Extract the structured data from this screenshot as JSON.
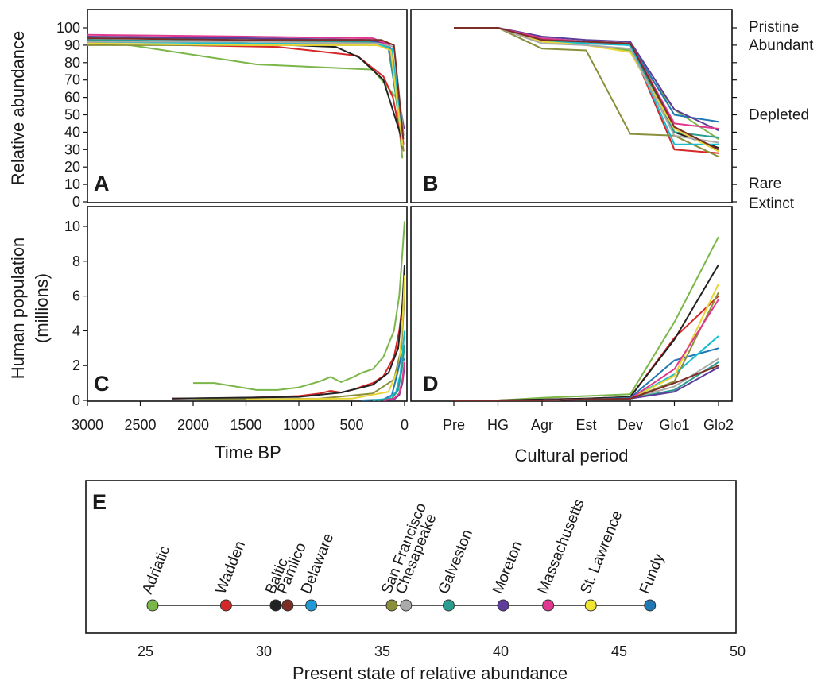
{
  "chart_data": [
    {
      "panel": "A",
      "type": "line",
      "xlabel": "Time BP",
      "ylabel": "Relative abundance",
      "xlim": [
        3000,
        0
      ],
      "ylim": [
        0,
        100
      ],
      "xticks": [
        "3000",
        "2500",
        "2000",
        "1500",
        "1000",
        "500",
        "0"
      ],
      "yticks": [
        "0",
        "10",
        "20",
        "30",
        "40",
        "50",
        "60",
        "70",
        "80",
        "90",
        "100"
      ],
      "series": [
        {
          "color": "#7ab648",
          "x": [
            3000,
            2600,
            1400,
            300,
            80,
            20
          ],
          "y": [
            92,
            90,
            79,
            76,
            60,
            25
          ]
        },
        {
          "color": "#d62728",
          "x": [
            3000,
            1200,
            450,
            200,
            110,
            15
          ],
          "y": [
            91,
            89,
            84,
            72,
            60,
            30
          ]
        },
        {
          "color": "#222222",
          "x": [
            3000,
            1500,
            650,
            430,
            200,
            30
          ],
          "y": [
            93,
            91,
            89,
            83,
            70,
            37
          ]
        },
        {
          "color": "#8a8f3a",
          "x": [
            3000,
            1500,
            250,
            120,
            10
          ],
          "y": [
            90,
            90,
            90,
            88,
            29
          ]
        },
        {
          "color": "#1f77b4",
          "x": [
            3000,
            1500,
            400,
            160,
            25
          ],
          "y": [
            94,
            94,
            93,
            91,
            40
          ]
        },
        {
          "color": "#2a9d8f",
          "x": [
            3000,
            1500,
            350,
            150,
            20
          ],
          "y": [
            93,
            92,
            92,
            89,
            35
          ]
        },
        {
          "color": "#5e3c99",
          "x": [
            3000,
            1500,
            320,
            140,
            5
          ],
          "y": [
            95,
            94,
            93,
            90,
            42
          ]
        },
        {
          "color": "#e0388f",
          "x": [
            3000,
            1500,
            300,
            140,
            10
          ],
          "y": [
            96,
            95,
            94,
            90,
            33
          ]
        },
        {
          "color": "#17becf",
          "x": [
            3000,
            1500,
            280,
            120,
            30
          ],
          "y": [
            92,
            91,
            91,
            88,
            45
          ]
        },
        {
          "color": "#e8d53a",
          "x": [
            3000,
            1500,
            260,
            130,
            18
          ],
          "y": [
            91,
            90,
            90,
            87,
            32
          ]
        },
        {
          "color": "#aaaaaa",
          "x": [
            3000,
            1500,
            240,
            100,
            8
          ],
          "y": [
            92,
            92,
            91,
            89,
            38
          ]
        },
        {
          "color": "#7b2d26",
          "x": [
            3000,
            1500,
            220,
            100,
            12
          ],
          "y": [
            94,
            93,
            93,
            90,
            36
          ]
        }
      ]
    },
    {
      "panel": "B",
      "type": "line",
      "xlabel": "Cultural period",
      "categories": [
        "Pre",
        "HG",
        "Agr",
        "Est",
        "Dev",
        "Glo1",
        "Glo2"
      ],
      "ylim": [
        0,
        100
      ],
      "state_labels": [
        {
          "label": "Pristine",
          "value": 100
        },
        {
          "label": "Abundant",
          "value": 90
        },
        {
          "label": "Depleted",
          "value": 50
        },
        {
          "label": "Rare",
          "value": 10
        },
        {
          "label": "Extinct",
          "value": 0
        }
      ],
      "series": [
        {
          "color": "#7ab648",
          "values": [
            100,
            100,
            92,
            90,
            87,
            53,
            36
          ]
        },
        {
          "color": "#d62728",
          "values": [
            100,
            100,
            93,
            92,
            90,
            30,
            28
          ]
        },
        {
          "color": "#222222",
          "values": [
            100,
            100,
            93,
            92,
            91,
            40,
            31
          ]
        },
        {
          "color": "#8a8f3a",
          "values": [
            100,
            100,
            88,
            87,
            39,
            38,
            26
          ]
        },
        {
          "color": "#1f77b4",
          "values": [
            100,
            100,
            94,
            92,
            91,
            50,
            46
          ]
        },
        {
          "color": "#2a9d8f",
          "values": [
            100,
            100,
            93,
            91,
            90,
            40,
            37
          ]
        },
        {
          "color": "#5e3c99",
          "values": [
            100,
            100,
            95,
            93,
            92,
            53,
            41
          ]
        },
        {
          "color": "#e0388f",
          "values": [
            100,
            100,
            94,
            92,
            91,
            45,
            42
          ]
        },
        {
          "color": "#17becf",
          "values": [
            100,
            100,
            92,
            91,
            90,
            33,
            33
          ]
        },
        {
          "color": "#e8d53a",
          "values": [
            100,
            100,
            92,
            90,
            86,
            42,
            29
          ]
        },
        {
          "color": "#aaaaaa",
          "values": [
            100,
            100,
            91,
            90,
            88,
            38,
            34
          ]
        },
        {
          "color": "#7b2d26",
          "values": [
            100,
            100,
            93,
            92,
            91,
            43,
            30
          ]
        }
      ]
    },
    {
      "panel": "C",
      "type": "line",
      "xlabel": "Time BP",
      "ylabel": "Human population (millions)",
      "xlim": [
        3000,
        0
      ],
      "ylim": [
        0,
        10.8
      ],
      "xticks": [
        "3000",
        "2500",
        "2000",
        "1500",
        "1000",
        "500",
        "0"
      ],
      "yticks": [
        "0",
        "2",
        "4",
        "6",
        "8",
        "10"
      ],
      "series": [
        {
          "color": "#7ab648",
          "x": [
            2000,
            1800,
            1400,
            1200,
            1000,
            800,
            700,
            600,
            500,
            400,
            300,
            200,
            100,
            50,
            20,
            0
          ],
          "y": [
            1.0,
            1.0,
            0.6,
            0.6,
            0.75,
            1.1,
            1.35,
            1.05,
            1.3,
            1.6,
            1.8,
            2.5,
            4.0,
            6.0,
            8.5,
            10.3
          ]
        },
        {
          "color": "#d62728",
          "x": [
            2200,
            1500,
            1000,
            800,
            700,
            600,
            500,
            400,
            300,
            200,
            100,
            50,
            20,
            0
          ],
          "y": [
            0.1,
            0.15,
            0.25,
            0.4,
            0.55,
            0.45,
            0.6,
            0.8,
            1.0,
            1.4,
            2.5,
            4.0,
            5.5,
            6.2
          ]
        },
        {
          "color": "#222222",
          "x": [
            2200,
            1000,
            600,
            300,
            150,
            60,
            20,
            0
          ],
          "y": [
            0.1,
            0.2,
            0.45,
            0.9,
            1.6,
            3.0,
            5.5,
            7.8
          ]
        },
        {
          "color": "#8a8f3a",
          "x": [
            2000,
            800,
            300,
            100,
            30,
            0
          ],
          "y": [
            0.05,
            0.1,
            0.4,
            1.2,
            3.0,
            6.1
          ]
        },
        {
          "color": "#e8d53a",
          "x": [
            1500,
            500,
            150,
            50,
            15,
            0
          ],
          "y": [
            0.05,
            0.1,
            0.5,
            2.0,
            5.0,
            7.2
          ]
        },
        {
          "color": "#1f77b4",
          "x": [
            400,
            200,
            120,
            70,
            30,
            0
          ],
          "y": [
            0.0,
            0.05,
            0.3,
            1.5,
            2.6,
            2.3
          ]
        },
        {
          "color": "#17becf",
          "x": [
            300,
            150,
            80,
            40,
            15,
            0
          ],
          "y": [
            0.0,
            0.1,
            0.5,
            1.5,
            3.0,
            4.0
          ]
        },
        {
          "color": "#2a9d8f",
          "x": [
            250,
            120,
            60,
            25,
            0
          ],
          "y": [
            0.0,
            0.1,
            0.6,
            1.8,
            3.2
          ]
        },
        {
          "color": "#5e3c99",
          "x": [
            200,
            100,
            50,
            20,
            0
          ],
          "y": [
            0.0,
            0.05,
            0.3,
            1.0,
            2.0
          ]
        },
        {
          "color": "#e0388f",
          "x": [
            200,
            100,
            50,
            20,
            0
          ],
          "y": [
            0.0,
            0.1,
            0.4,
            1.2,
            2.2
          ]
        }
      ]
    },
    {
      "panel": "D",
      "type": "line",
      "xlabel": "Cultural period",
      "categories": [
        "Pre",
        "HG",
        "Agr",
        "Est",
        "Dev",
        "Glo1",
        "Glo2"
      ],
      "ylim": [
        0,
        10.8
      ],
      "series": [
        {
          "color": "#7ab648",
          "values": [
            0,
            0,
            0.15,
            0.25,
            0.35,
            4.5,
            9.4
          ]
        },
        {
          "color": "#d62728",
          "values": [
            0,
            0,
            0.05,
            0.1,
            0.2,
            3.6,
            6.0
          ]
        },
        {
          "color": "#222222",
          "values": [
            0,
            0,
            0.05,
            0.1,
            0.2,
            3.5,
            7.8
          ]
        },
        {
          "color": "#1f77b4",
          "values": [
            0,
            0,
            0,
            0.05,
            0.15,
            2.3,
            3.0
          ]
        },
        {
          "color": "#17becf",
          "values": [
            0,
            0,
            0,
            0.05,
            0.1,
            1.5,
            3.7
          ]
        },
        {
          "color": "#e8d53a",
          "values": [
            0,
            0,
            0,
            0.05,
            0.1,
            1.4,
            6.7
          ]
        },
        {
          "color": "#8a8f3a",
          "values": [
            0,
            0,
            0,
            0.05,
            0.1,
            1.1,
            6.2
          ]
        },
        {
          "color": "#aaaaaa",
          "values": [
            0,
            0,
            0,
            0.05,
            0.1,
            0.8,
            2.4
          ]
        },
        {
          "color": "#2a9d8f",
          "values": [
            0,
            0,
            0,
            0.05,
            0.1,
            0.6,
            2.2
          ]
        },
        {
          "color": "#e0388f",
          "values": [
            0,
            0,
            0,
            0.05,
            0.1,
            1.8,
            5.8
          ]
        },
        {
          "color": "#5e3c99",
          "values": [
            0,
            0,
            0,
            0.05,
            0.1,
            0.5,
            1.9
          ]
        },
        {
          "color": "#7b2d26",
          "values": [
            0,
            0,
            0,
            0.05,
            0.1,
            1.0,
            2.0
          ]
        }
      ]
    },
    {
      "panel": "E",
      "type": "scatter",
      "xlabel": "Present state of relative abundance",
      "xlim": [
        22.5,
        50
      ],
      "xticks": [
        "25",
        "30",
        "35",
        "40",
        "45",
        "50"
      ],
      "points": [
        {
          "name": "Adriatic",
          "x": 25.3,
          "color": "#7ab648"
        },
        {
          "name": "Wadden",
          "x": 28.4,
          "color": "#d62728"
        },
        {
          "name": "Baltic",
          "x": 30.5,
          "color": "#222222"
        },
        {
          "name": "Pamlico",
          "x": 31.0,
          "color": "#7b2d26"
        },
        {
          "name": "Delaware",
          "x": 32.0,
          "color": "#1f9ad6"
        },
        {
          "name": "San Francisco",
          "x": 35.4,
          "color": "#8a8f3a"
        },
        {
          "name": "Chesapeake",
          "x": 36.0,
          "color": "#aaaaaa"
        },
        {
          "name": "Galveston",
          "x": 37.8,
          "color": "#2a9d8f"
        },
        {
          "name": "Moreton",
          "x": 40.1,
          "color": "#5e3c99"
        },
        {
          "name": "Massachusetts",
          "x": 42.0,
          "color": "#e0388f"
        },
        {
          "name": "St. Lawrence",
          "x": 43.8,
          "color": "#f2e531"
        },
        {
          "name": "Fundy",
          "x": 46.3,
          "color": "#1f77b4"
        }
      ]
    }
  ],
  "panel_tags": {
    "a": "A",
    "b": "B",
    "c": "C",
    "d": "D",
    "e": "E"
  },
  "labels": {
    "ylabel_top": "Relative abundance",
    "ylabel_bottom_line1": "Human population",
    "ylabel_bottom_line2": "(millions)",
    "xlabel_left": "Time BP",
    "xlabel_right": "Cultural period",
    "xlabel_e": "Present state of relative abundance"
  }
}
